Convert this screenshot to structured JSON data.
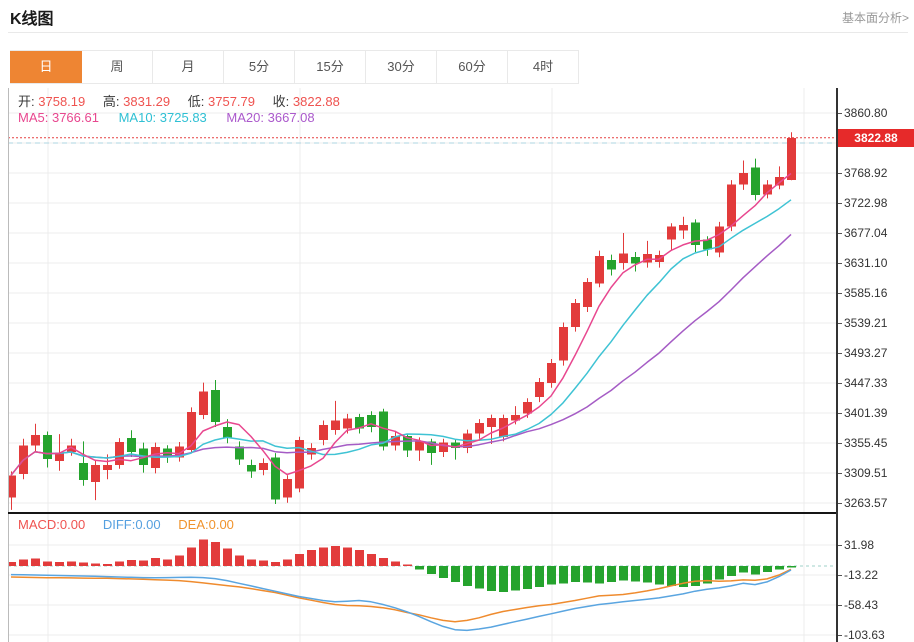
{
  "header": {
    "title": "K线图",
    "link_label": "基本面分析>"
  },
  "tabs": [
    {
      "label": "日",
      "name": "tab-day",
      "active": true
    },
    {
      "label": "周",
      "name": "tab-week",
      "active": false
    },
    {
      "label": "月",
      "name": "tab-month",
      "active": false
    },
    {
      "label": "5分",
      "name": "tab-5min",
      "active": false
    },
    {
      "label": "15分",
      "name": "tab-15min",
      "active": false
    },
    {
      "label": "30分",
      "name": "tab-30min",
      "active": false
    },
    {
      "label": "60分",
      "name": "tab-60min",
      "active": false
    },
    {
      "label": "4时",
      "name": "tab-4hour",
      "active": false
    }
  ],
  "quote_bar": {
    "open_label": "开:",
    "open_value": "3758.19",
    "high_label": "高:",
    "high_value": "3831.29",
    "low_label": "低:",
    "low_value": "3757.79",
    "close_label": "收:",
    "close_value": "3822.88"
  },
  "ma_bar": {
    "ma5_label": "MA5:",
    "ma5_value": "3766.61",
    "ma10_label": "MA10:",
    "ma10_value": "3725.83",
    "ma20_label": "MA20:",
    "ma20_value": "3667.08"
  },
  "macd_bar": {
    "macd_label": "MACD:",
    "macd_value": "0.00",
    "diff_label": "DIFF:",
    "diff_value": "0.00",
    "dea_label": "DEA:",
    "dea_value": "0.00"
  },
  "price_marker": {
    "value": "3822.88"
  },
  "colors": {
    "up": "#e23b3b",
    "down": "#25a32d",
    "ma5": "#e8478f",
    "ma10": "#3fc3d4",
    "ma20": "#a55cc5",
    "diff": "#5aa5e0",
    "dea": "#ef8b2e",
    "accent_tab": "#ee8533",
    "badge": "#e62a2a",
    "grid": "#ececec",
    "marker_dotted": "#e64040",
    "marker_dashed": "#aed6e2",
    "zero_dashed": "#9fd0c8"
  },
  "chart_data": {
    "type": "candlestick",
    "title": "K线图 (daily K-line with MA5/MA10/MA20 and MACD)",
    "price_axis_ticks": [
      "3860.80",
      "3768.92",
      "3722.98",
      "3677.04",
      "3631.10",
      "3585.16",
      "3539.21",
      "3493.27",
      "3447.33",
      "3401.39",
      "3355.45",
      "3309.51",
      "3263.57"
    ],
    "current_price": 3822.88,
    "candle_format": "[open, high, low, close]",
    "candles": [
      [
        3272,
        3312,
        3253,
        3306
      ],
      [
        3308,
        3362,
        3300,
        3352
      ],
      [
        3352,
        3385,
        3341,
        3368
      ],
      [
        3368,
        3373,
        3318,
        3331
      ],
      [
        3328,
        3369,
        3313,
        3341
      ],
      [
        3342,
        3362,
        3336,
        3352
      ],
      [
        3325,
        3358,
        3290,
        3299
      ],
      [
        3296,
        3330,
        3268,
        3322
      ],
      [
        3314,
        3338,
        3300,
        3322
      ],
      [
        3322,
        3363,
        3316,
        3357
      ],
      [
        3363,
        3375,
        3334,
        3342
      ],
      [
        3347,
        3356,
        3310,
        3322
      ],
      [
        3317,
        3356,
        3309,
        3349
      ],
      [
        3347,
        3352,
        3325,
        3333
      ],
      [
        3333,
        3357,
        3327,
        3350
      ],
      [
        3345,
        3410,
        3340,
        3403
      ],
      [
        3398,
        3448,
        3392,
        3434
      ],
      [
        3437,
        3452,
        3380,
        3388
      ],
      [
        3380,
        3392,
        3355,
        3363
      ],
      [
        3350,
        3358,
        3322,
        3330
      ],
      [
        3322,
        3330,
        3302,
        3312
      ],
      [
        3314,
        3332,
        3306,
        3325
      ],
      [
        3333,
        3340,
        3262,
        3269
      ],
      [
        3272,
        3306,
        3264,
        3300
      ],
      [
        3286,
        3365,
        3280,
        3360
      ],
      [
        3338,
        3355,
        3330,
        3348
      ],
      [
        3360,
        3390,
        3352,
        3383
      ],
      [
        3375,
        3420,
        3368,
        3390
      ],
      [
        3378,
        3400,
        3370,
        3393
      ],
      [
        3395,
        3400,
        3370,
        3378
      ],
      [
        3398,
        3404,
        3372,
        3380
      ],
      [
        3404,
        3408,
        3344,
        3350
      ],
      [
        3352,
        3374,
        3344,
        3366
      ],
      [
        3366,
        3370,
        3334,
        3344
      ],
      [
        3344,
        3364,
        3328,
        3358
      ],
      [
        3358,
        3362,
        3322,
        3340
      ],
      [
        3342,
        3362,
        3334,
        3356
      ],
      [
        3356,
        3360,
        3330,
        3348
      ],
      [
        3348,
        3376,
        3340,
        3370
      ],
      [
        3370,
        3392,
        3362,
        3386
      ],
      [
        3380,
        3399,
        3354,
        3394
      ],
      [
        3365,
        3399,
        3358,
        3394
      ],
      [
        3390,
        3412,
        3384,
        3398
      ],
      [
        3401,
        3424,
        3394,
        3418
      ],
      [
        3426,
        3455,
        3418,
        3449
      ],
      [
        3447,
        3484,
        3440,
        3478
      ],
      [
        3482,
        3540,
        3474,
        3533
      ],
      [
        3533,
        3576,
        3526,
        3570
      ],
      [
        3564,
        3608,
        3556,
        3602
      ],
      [
        3600,
        3650,
        3594,
        3642
      ],
      [
        3636,
        3644,
        3612,
        3621
      ],
      [
        3631,
        3677,
        3621,
        3646
      ],
      [
        3640,
        3648,
        3618,
        3630
      ],
      [
        3632,
        3665,
        3624,
        3645
      ],
      [
        3633,
        3650,
        3624,
        3643
      ],
      [
        3667,
        3692,
        3650,
        3687
      ],
      [
        3681,
        3702,
        3668,
        3689
      ],
      [
        3693,
        3698,
        3648,
        3659
      ],
      [
        3667,
        3672,
        3642,
        3652
      ],
      [
        3647,
        3694,
        3640,
        3687
      ],
      [
        3687,
        3758,
        3680,
        3751
      ],
      [
        3751,
        3788,
        3743,
        3769
      ],
      [
        3777,
        3791,
        3727,
        3735
      ],
      [
        3736,
        3758,
        3730,
        3751
      ],
      [
        3750,
        3779,
        3744,
        3763
      ],
      [
        3758.19,
        3831.29,
        3757.79,
        3822.88
      ]
    ],
    "ma_periods": [
      5,
      10,
      20
    ],
    "macd": {
      "ticks": [
        "31.98",
        "-13.22",
        "-58.43",
        "-103.63"
      ],
      "histogram": [
        6,
        10,
        11,
        7,
        6,
        7,
        5,
        4,
        3,
        7,
        9,
        8,
        12,
        10,
        16,
        28,
        40,
        36,
        26,
        16,
        10,
        8,
        6,
        10,
        18,
        24,
        28,
        30,
        28,
        24,
        18,
        12,
        7,
        2,
        -5,
        -12,
        -18,
        -24,
        -30,
        -34,
        -38,
        -39,
        -37,
        -35,
        -32,
        -28,
        -26,
        -24,
        -25,
        -26,
        -24,
        -22,
        -23,
        -25,
        -28,
        -30,
        -32,
        -30,
        -26,
        -20,
        -15,
        -10,
        -13,
        -9,
        -5,
        -2
      ],
      "diff_line": [
        -13,
        -13.3,
        -13.6,
        -14,
        -14.3,
        -14.6,
        -15,
        -15.5,
        -16,
        -16.5,
        -17,
        -17.5,
        -17.8,
        -17.5,
        -17.2,
        -17,
        -17.5,
        -19,
        -22,
        -26,
        -30,
        -34,
        -38,
        -42,
        -46,
        -49,
        -52,
        -54,
        -53,
        -52,
        -54,
        -58,
        -63,
        -69,
        -76,
        -84,
        -91,
        -96,
        -97,
        -95,
        -92,
        -88,
        -84,
        -80,
        -76,
        -72,
        -68,
        -64,
        -61,
        -58,
        -56,
        -54,
        -52,
        -50,
        -48,
        -45,
        -42,
        -38,
        -35,
        -33,
        -30,
        -26,
        -28,
        -24,
        -16,
        -6
      ],
      "dea_line": [
        -16.5,
        -17,
        -17.4,
        -17.6,
        -17.8,
        -18,
        -18.2,
        -18.4,
        -18.6,
        -19,
        -19.5,
        -20,
        -20.8,
        -21.3,
        -22,
        -23.5,
        -25.5,
        -27.5,
        -29.5,
        -31.5,
        -34,
        -37,
        -40,
        -44,
        -48,
        -51.5,
        -55,
        -58,
        -59.5,
        -60,
        -61,
        -63,
        -66,
        -70,
        -73.5,
        -78,
        -82,
        -84,
        -82,
        -78,
        -73,
        -68.5,
        -65.5,
        -62.5,
        -60,
        -58,
        -55,
        -52,
        -48.5,
        -45,
        -44,
        -43,
        -40.5,
        -37.5,
        -34,
        -30,
        -26,
        -23,
        -22,
        -23,
        -22.5,
        -21,
        -21.5,
        -19.5,
        -13.5,
        -5
      ]
    }
  }
}
